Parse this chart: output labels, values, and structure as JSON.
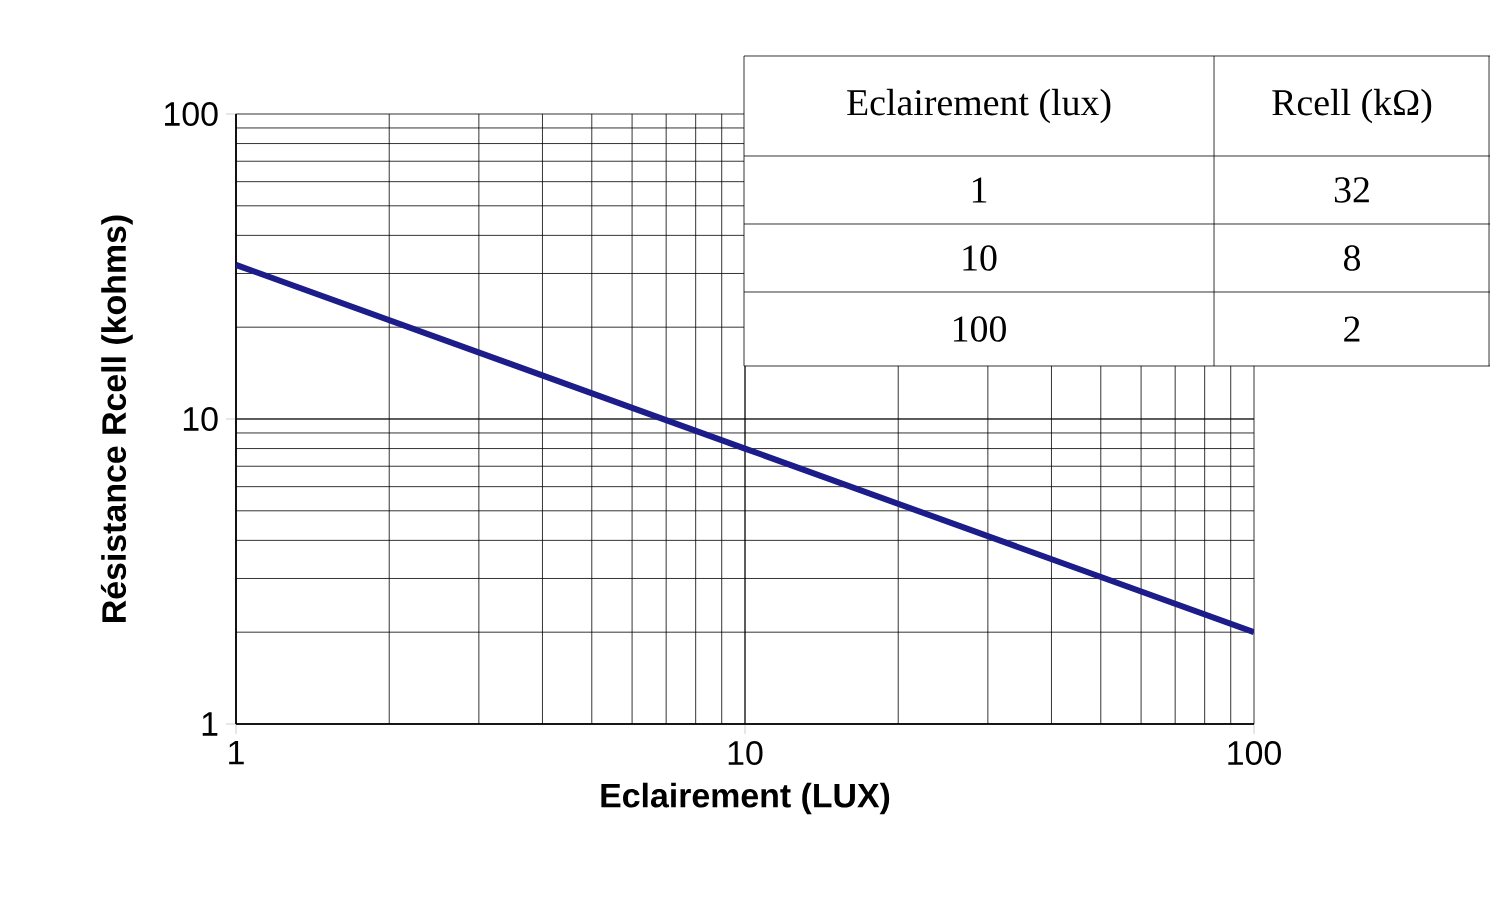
{
  "chart_data": [
    {
      "type": "line",
      "xlabel": "Eclairement (LUX)",
      "ylabel": "Résistance Rcell (kohms)",
      "x": [
        1,
        10,
        100
      ],
      "series": [
        {
          "color": "#1c1c8a",
          "values": [
            32,
            8,
            2
          ]
        }
      ],
      "log": "xy",
      "xlim": [
        1,
        100
      ],
      "ylim": [
        1,
        100
      ],
      "xticks": [
        1,
        10,
        100
      ],
      "yticks": [
        1,
        10,
        100
      ],
      "grid": true,
      "marker": "none",
      "line_style": "solid"
    },
    {
      "type": "other",
      "xlabel": "Eclairement (lux)",
      "ylabel": "Rcell (kΩ)",
      "categories": [
        "1",
        "10",
        "100"
      ],
      "values": [
        32,
        8,
        2
      ],
      "data_labels": true
    }
  ]
}
